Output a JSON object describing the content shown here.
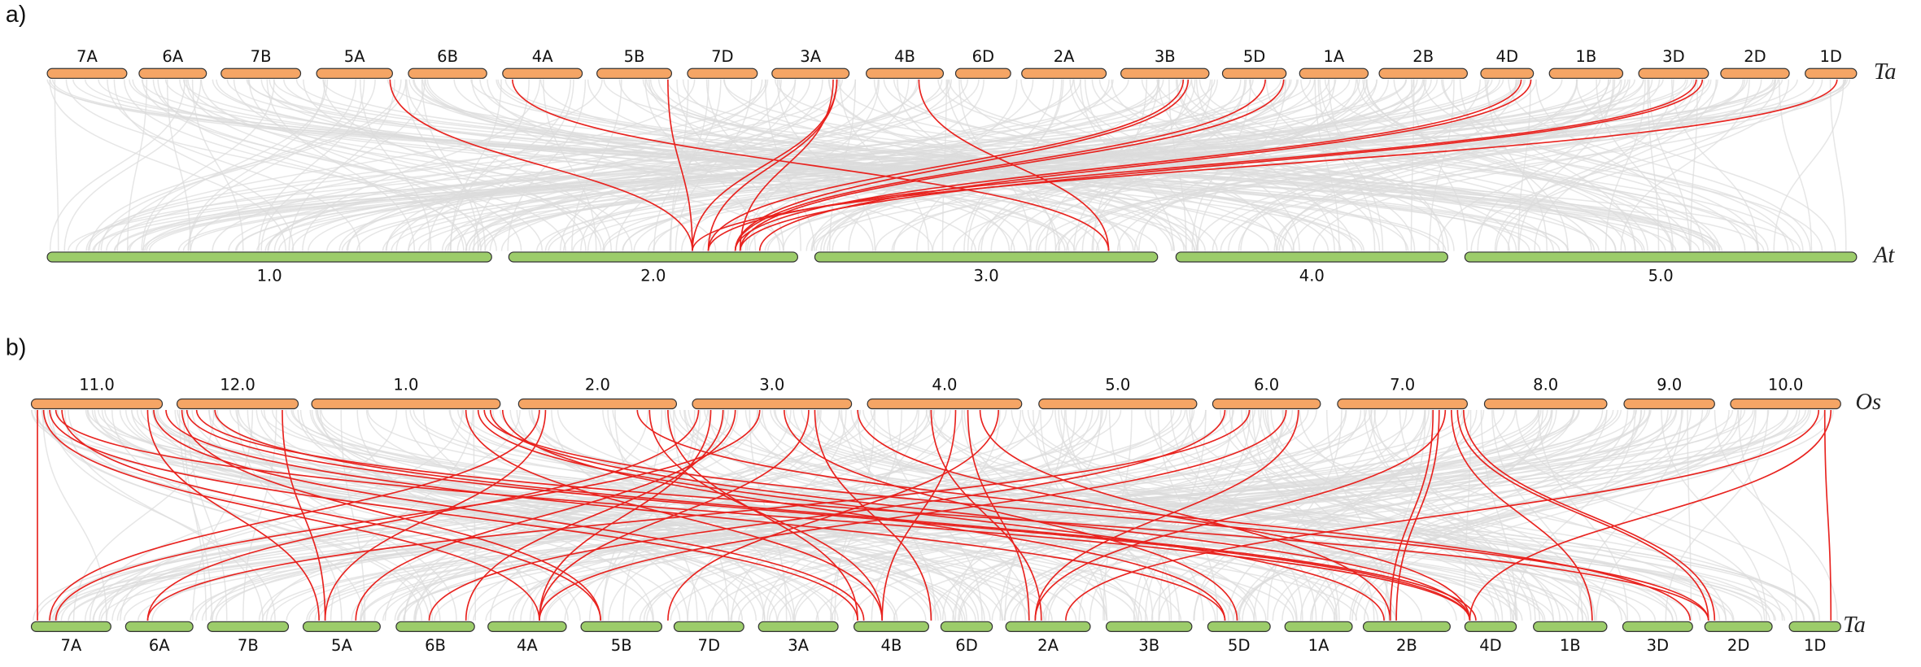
{
  "panels": [
    {
      "label": "a)",
      "top": {
        "species": "Ta",
        "chromosomes": [
          "7A",
          "6A",
          "7B",
          "5A",
          "6B",
          "4A",
          "5B",
          "7D",
          "3A",
          "4B",
          "6D",
          "2A",
          "3B",
          "5D",
          "1A",
          "2B",
          "4D",
          "1B",
          "3D",
          "2D",
          "1D"
        ]
      },
      "bottom": {
        "species": "At",
        "chromosomes": [
          "1.0",
          "2.0",
          "3.0",
          "4.0",
          "5.0"
        ]
      }
    },
    {
      "label": "b)",
      "top": {
        "species": "Os",
        "chromosomes": [
          "11.0",
          "12.0",
          "1.0",
          "2.0",
          "3.0",
          "4.0",
          "5.0",
          "6.0",
          "7.0",
          "8.0",
          "9.0",
          "10.0"
        ]
      },
      "bottom": {
        "species": "Ta",
        "chromosomes": [
          "7A",
          "6A",
          "7B",
          "5A",
          "6B",
          "4A",
          "5B",
          "7D",
          "3A",
          "4B",
          "6D",
          "2A",
          "3B",
          "5D",
          "1A",
          "2B",
          "4D",
          "1B",
          "3D",
          "2D",
          "1D"
        ]
      }
    }
  ]
}
